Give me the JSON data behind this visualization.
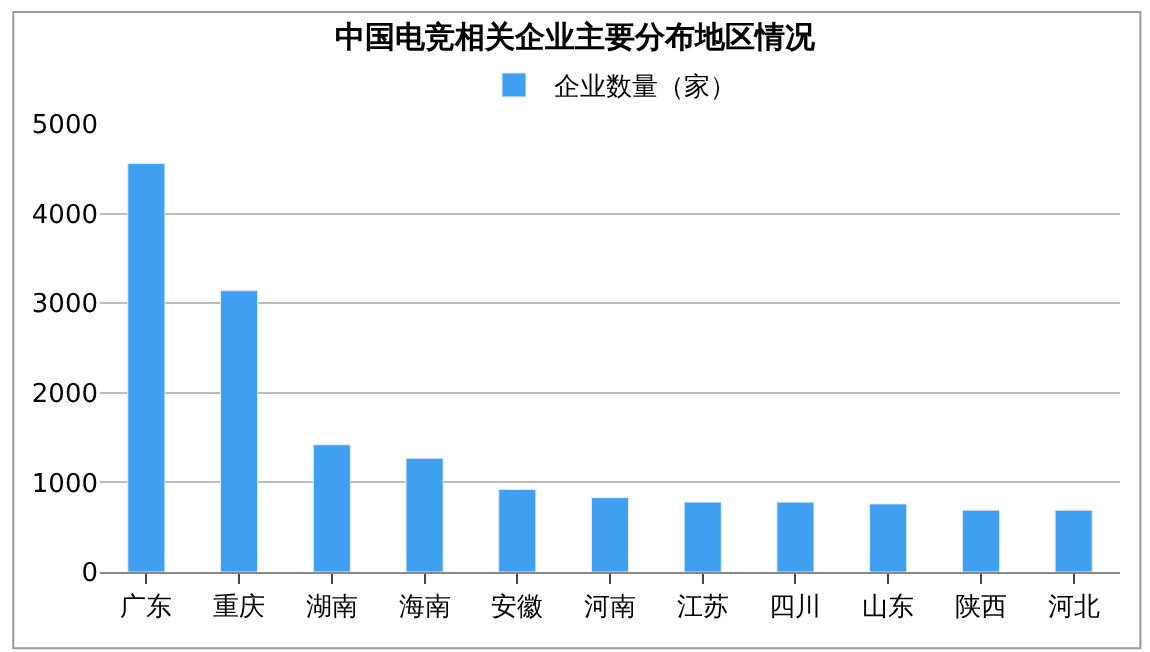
{
  "chart_data": {
    "type": "bar",
    "title": "中国电竞相关企业主要分布地区情况",
    "categories": [
      "广东",
      "重庆",
      "湖南",
      "海南",
      "安徽",
      "河南",
      "江苏",
      "四川",
      "山东",
      "陕西",
      "河北"
    ],
    "series": [
      {
        "name": "企业数量（家）",
        "color": "#3f9ff0",
        "values": [
          4560,
          3140,
          1420,
          1270,
          920,
          830,
          780,
          780,
          760,
          690,
          690
        ]
      }
    ],
    "ylim": [
      0,
      5000
    ],
    "yticks": [
      0,
      1000,
      2000,
      3000,
      4000,
      5000
    ],
    "grid": "y",
    "legend": "top"
  }
}
